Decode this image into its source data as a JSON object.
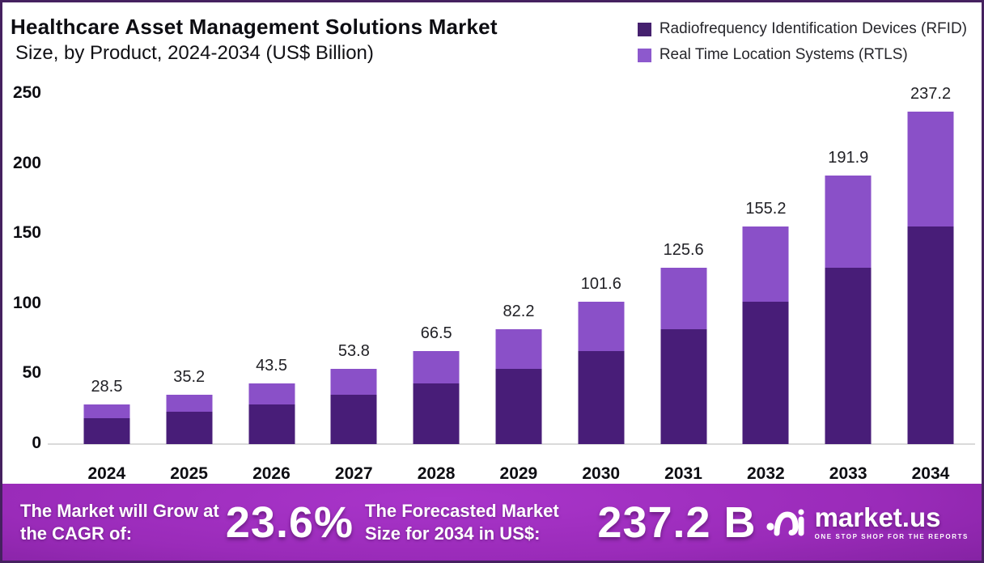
{
  "title": "Healthcare Asset Management Solutions Market",
  "subtitle": "Size, by Product, 2024-2034 (US$ Billion)",
  "legend": [
    {
      "label": "Radiofrequency Identification Devices (RFID)",
      "color": "#45206e"
    },
    {
      "label": "Real Time Location Systems (RTLS)",
      "color": "#8d59cd"
    }
  ],
  "colors": {
    "rfid_bar": "#481d78",
    "rtls_bar": "#8a50c8",
    "frame_border": "#45215f",
    "baseline": "#dadada",
    "banner_center": "#9a2bb9",
    "banner_edge": "#51156b",
    "text_dark": "#0d0d12",
    "text_white": "#ffffff"
  },
  "chart_data": {
    "type": "bar",
    "stacked": true,
    "title": "Healthcare Asset Management Solutions Market Size, by Product, 2024-2034 (US$ Billion)",
    "xlabel": "",
    "ylabel": "US$ Billion",
    "categories": [
      "2024",
      "2025",
      "2026",
      "2027",
      "2028",
      "2029",
      "2030",
      "2031",
      "2032",
      "2033",
      "2034"
    ],
    "series": [
      {
        "name": "Radiofrequency Identification Devices (RFID)",
        "color": "#481d78",
        "values": [
          18.7,
          23.1,
          28.5,
          35.2,
          43.5,
          53.8,
          66.5,
          82.2,
          101.6,
          125.6,
          155.2
        ]
      },
      {
        "name": "Real Time Location Systems (RTLS)",
        "color": "#8a50c8",
        "values": [
          9.8,
          12.1,
          15.0,
          18.6,
          23.0,
          28.4,
          35.1,
          43.4,
          53.6,
          66.3,
          82.0
        ]
      }
    ],
    "totals": [
      28.5,
      35.2,
      43.5,
      53.8,
      66.5,
      82.2,
      101.6,
      125.6,
      155.2,
      191.9,
      237.2
    ],
    "total_labels": [
      "28.5",
      "35.2",
      "43.5",
      "53.8",
      "66.5",
      "82.2",
      "101.6",
      "125.6",
      "155.2",
      "191.9",
      "237.2"
    ],
    "yticks": [
      0,
      50,
      100,
      150,
      200,
      250
    ],
    "ytick_labels": [
      "0",
      "50",
      "100",
      "150",
      "200",
      "250"
    ],
    "ylim": [
      0,
      250
    ],
    "grid": false,
    "legend_position": "top-right"
  },
  "banner": {
    "cagr_label": "The Market will Grow at the CAGR of:",
    "cagr_value": "23.6%",
    "forecast_label": "The Forecasted Market Size for 2034 in US$:",
    "forecast_value": "237.2 B",
    "logo_text": "market.us",
    "logo_tagline": "ONE STOP SHOP FOR THE REPORTS"
  }
}
